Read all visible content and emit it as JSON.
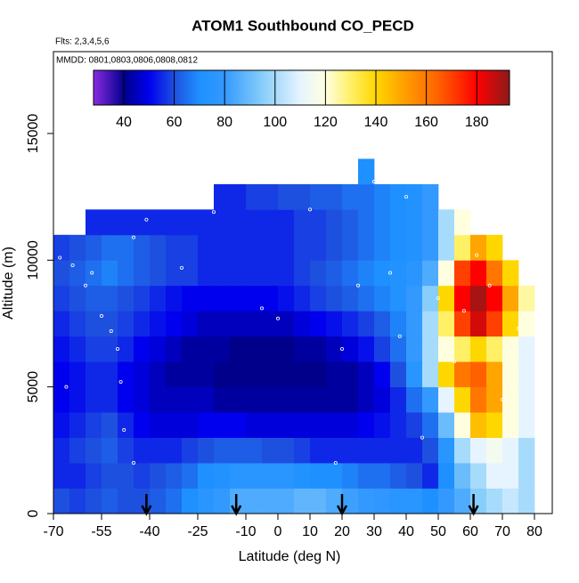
{
  "chart_data": {
    "type": "heatmap",
    "title": "ATOM1 Southbound CO_PECD",
    "subtitle": "Flts: 2,3,4,5,6",
    "annotation": "MMDD: 0801,0803,0806,0808,0812",
    "x_label": "Latitude (deg N)",
    "y_label": "Altitude (m)",
    "xlim": [
      -70,
      85.56
    ],
    "ylim": [
      0,
      18230
    ],
    "xticks": [
      -70,
      -55,
      -40,
      -25,
      -10,
      0,
      10,
      20,
      30,
      40,
      50,
      60,
      70,
      80
    ],
    "yticks": [
      0,
      5000,
      10000,
      15000
    ],
    "xbins": [
      -70,
      -65,
      -60,
      -55,
      -50,
      -45,
      -40,
      -35,
      -30,
      -25,
      -20,
      -15,
      -10,
      -5,
      0,
      5,
      10,
      15,
      20,
      25,
      30,
      35,
      40,
      45,
      50,
      55,
      60,
      65,
      70,
      75,
      80
    ],
    "ybins": [
      0,
      1000,
      2000,
      3000,
      4000,
      5000,
      6000,
      7000,
      8000,
      9000,
      10000,
      11000,
      12000,
      13000,
      14000
    ],
    "z": [
      [
        60,
        58,
        60,
        62,
        60,
        60,
        62,
        65,
        70,
        75,
        80,
        85,
        85,
        85,
        85,
        88,
        88,
        85,
        82,
        80,
        78,
        75,
        75,
        70,
        80,
        85,
        95,
        100,
        105,
        100
      ],
      [
        55,
        55,
        58,
        60,
        60,
        58,
        60,
        62,
        65,
        70,
        72,
        75,
        75,
        75,
        75,
        72,
        70,
        70,
        68,
        65,
        65,
        62,
        60,
        55,
        70,
        90,
        100,
        110,
        110,
        100
      ],
      [
        55,
        58,
        60,
        62,
        58,
        55,
        55,
        55,
        58,
        60,
        62,
        62,
        62,
        60,
        60,
        58,
        55,
        55,
        55,
        55,
        55,
        55,
        55,
        60,
        75,
        100,
        110,
        115,
        110,
        100
      ],
      [
        52,
        55,
        58,
        60,
        55,
        50,
        48,
        48,
        48,
        50,
        50,
        50,
        48,
        48,
        48,
        48,
        48,
        48,
        48,
        50,
        52,
        55,
        58,
        65,
        90,
        120,
        145,
        140,
        120,
        110
      ],
      [
        50,
        52,
        55,
        55,
        50,
        48,
        45,
        45,
        45,
        45,
        42,
        42,
        42,
        42,
        42,
        42,
        42,
        42,
        42,
        45,
        48,
        55,
        65,
        80,
        110,
        140,
        160,
        150,
        120,
        110
      ],
      [
        50,
        52,
        55,
        55,
        50,
        48,
        45,
        42,
        42,
        42,
        40,
        40,
        40,
        40,
        40,
        40,
        40,
        42,
        42,
        45,
        50,
        60,
        75,
        100,
        140,
        160,
        165,
        150,
        120,
        110
      ],
      [
        52,
        55,
        58,
        58,
        55,
        50,
        48,
        45,
        42,
        42,
        42,
        40,
        40,
        40,
        40,
        42,
        42,
        45,
        48,
        52,
        58,
        65,
        80,
        100,
        120,
        130,
        140,
        130,
        120,
        110
      ],
      [
        55,
        58,
        60,
        60,
        58,
        55,
        52,
        50,
        48,
        45,
        45,
        45,
        45,
        45,
        45,
        48,
        50,
        52,
        55,
        58,
        62,
        68,
        80,
        100,
        130,
        170,
        185,
        170,
        140,
        120
      ],
      [
        58,
        60,
        62,
        62,
        60,
        58,
        55,
        52,
        50,
        50,
        50,
        50,
        50,
        50,
        52,
        55,
        58,
        60,
        62,
        65,
        68,
        72,
        80,
        95,
        140,
        180,
        190,
        180,
        150,
        125
      ],
      [
        60,
        62,
        65,
        68,
        65,
        62,
        60,
        58,
        58,
        55,
        55,
        55,
        55,
        55,
        55,
        58,
        60,
        62,
        65,
        68,
        70,
        72,
        75,
        85,
        120,
        170,
        180,
        160,
        140,
        null
      ],
      [
        58,
        60,
        62,
        65,
        65,
        62,
        60,
        58,
        58,
        55,
        55,
        55,
        55,
        55,
        55,
        58,
        58,
        60,
        62,
        65,
        68,
        70,
        72,
        80,
        100,
        130,
        150,
        140,
        null,
        null
      ],
      [
        null,
        null,
        55,
        55,
        55,
        55,
        55,
        55,
        55,
        55,
        55,
        55,
        55,
        55,
        55,
        58,
        58,
        60,
        62,
        65,
        68,
        70,
        72,
        80,
        100,
        120,
        null,
        null,
        null,
        null
      ],
      [
        null,
        null,
        null,
        null,
        null,
        null,
        null,
        null,
        null,
        null,
        55,
        55,
        58,
        58,
        60,
        60,
        62,
        62,
        65,
        65,
        68,
        70,
        72,
        80,
        null,
        null,
        null,
        null,
        null,
        null
      ],
      [
        null,
        null,
        null,
        null,
        null,
        null,
        null,
        null,
        null,
        null,
        null,
        null,
        null,
        null,
        null,
        null,
        null,
        null,
        null,
        70,
        null,
        null,
        null,
        null,
        null,
        null,
        null,
        null,
        null,
        null
      ]
    ],
    "zlim": [
      28,
      193
    ],
    "colorbar_ticks": [
      40,
      60,
      80,
      100,
      120,
      140,
      160,
      180
    ],
    "colorscale": [
      [
        28,
        "#8a2be2"
      ],
      [
        40,
        "#00008b"
      ],
      [
        50,
        "#0000ee"
      ],
      [
        60,
        "#1e50e0"
      ],
      [
        70,
        "#1e90ff"
      ],
      [
        80,
        "#3399ff"
      ],
      [
        95,
        "#87cefa"
      ],
      [
        110,
        "#e6f4ff"
      ],
      [
        120,
        "#ffffe0"
      ],
      [
        130,
        "#fff066"
      ],
      [
        140,
        "#ffd700"
      ],
      [
        150,
        "#ffa500"
      ],
      [
        165,
        "#ff6000"
      ],
      [
        180,
        "#ff0000"
      ],
      [
        193,
        "#8b1a1a"
      ]
    ],
    "points": {
      "x": [
        -68,
        -66,
        -64,
        -60,
        -58,
        -55,
        -52,
        -50,
        -49,
        -48,
        -45,
        -45,
        -41,
        -30,
        -20,
        -5,
        0,
        10,
        18,
        20,
        25,
        30,
        35,
        38,
        40,
        45,
        50,
        55,
        58,
        62,
        66,
        70,
        75
      ],
      "y": [
        10100,
        5000,
        9800,
        9000,
        9500,
        7800,
        7200,
        6500,
        5200,
        3300,
        2000,
        10900,
        11600,
        9700,
        11900,
        8100,
        7700,
        12000,
        2000,
        6500,
        9000,
        13100,
        9500,
        7000,
        12500,
        3000,
        8500,
        6000,
        8000,
        10200,
        9000,
        4500,
        7300
      ],
      "color": "#ffffff"
    },
    "arrows": [
      -41,
      -13,
      20,
      61
    ]
  }
}
